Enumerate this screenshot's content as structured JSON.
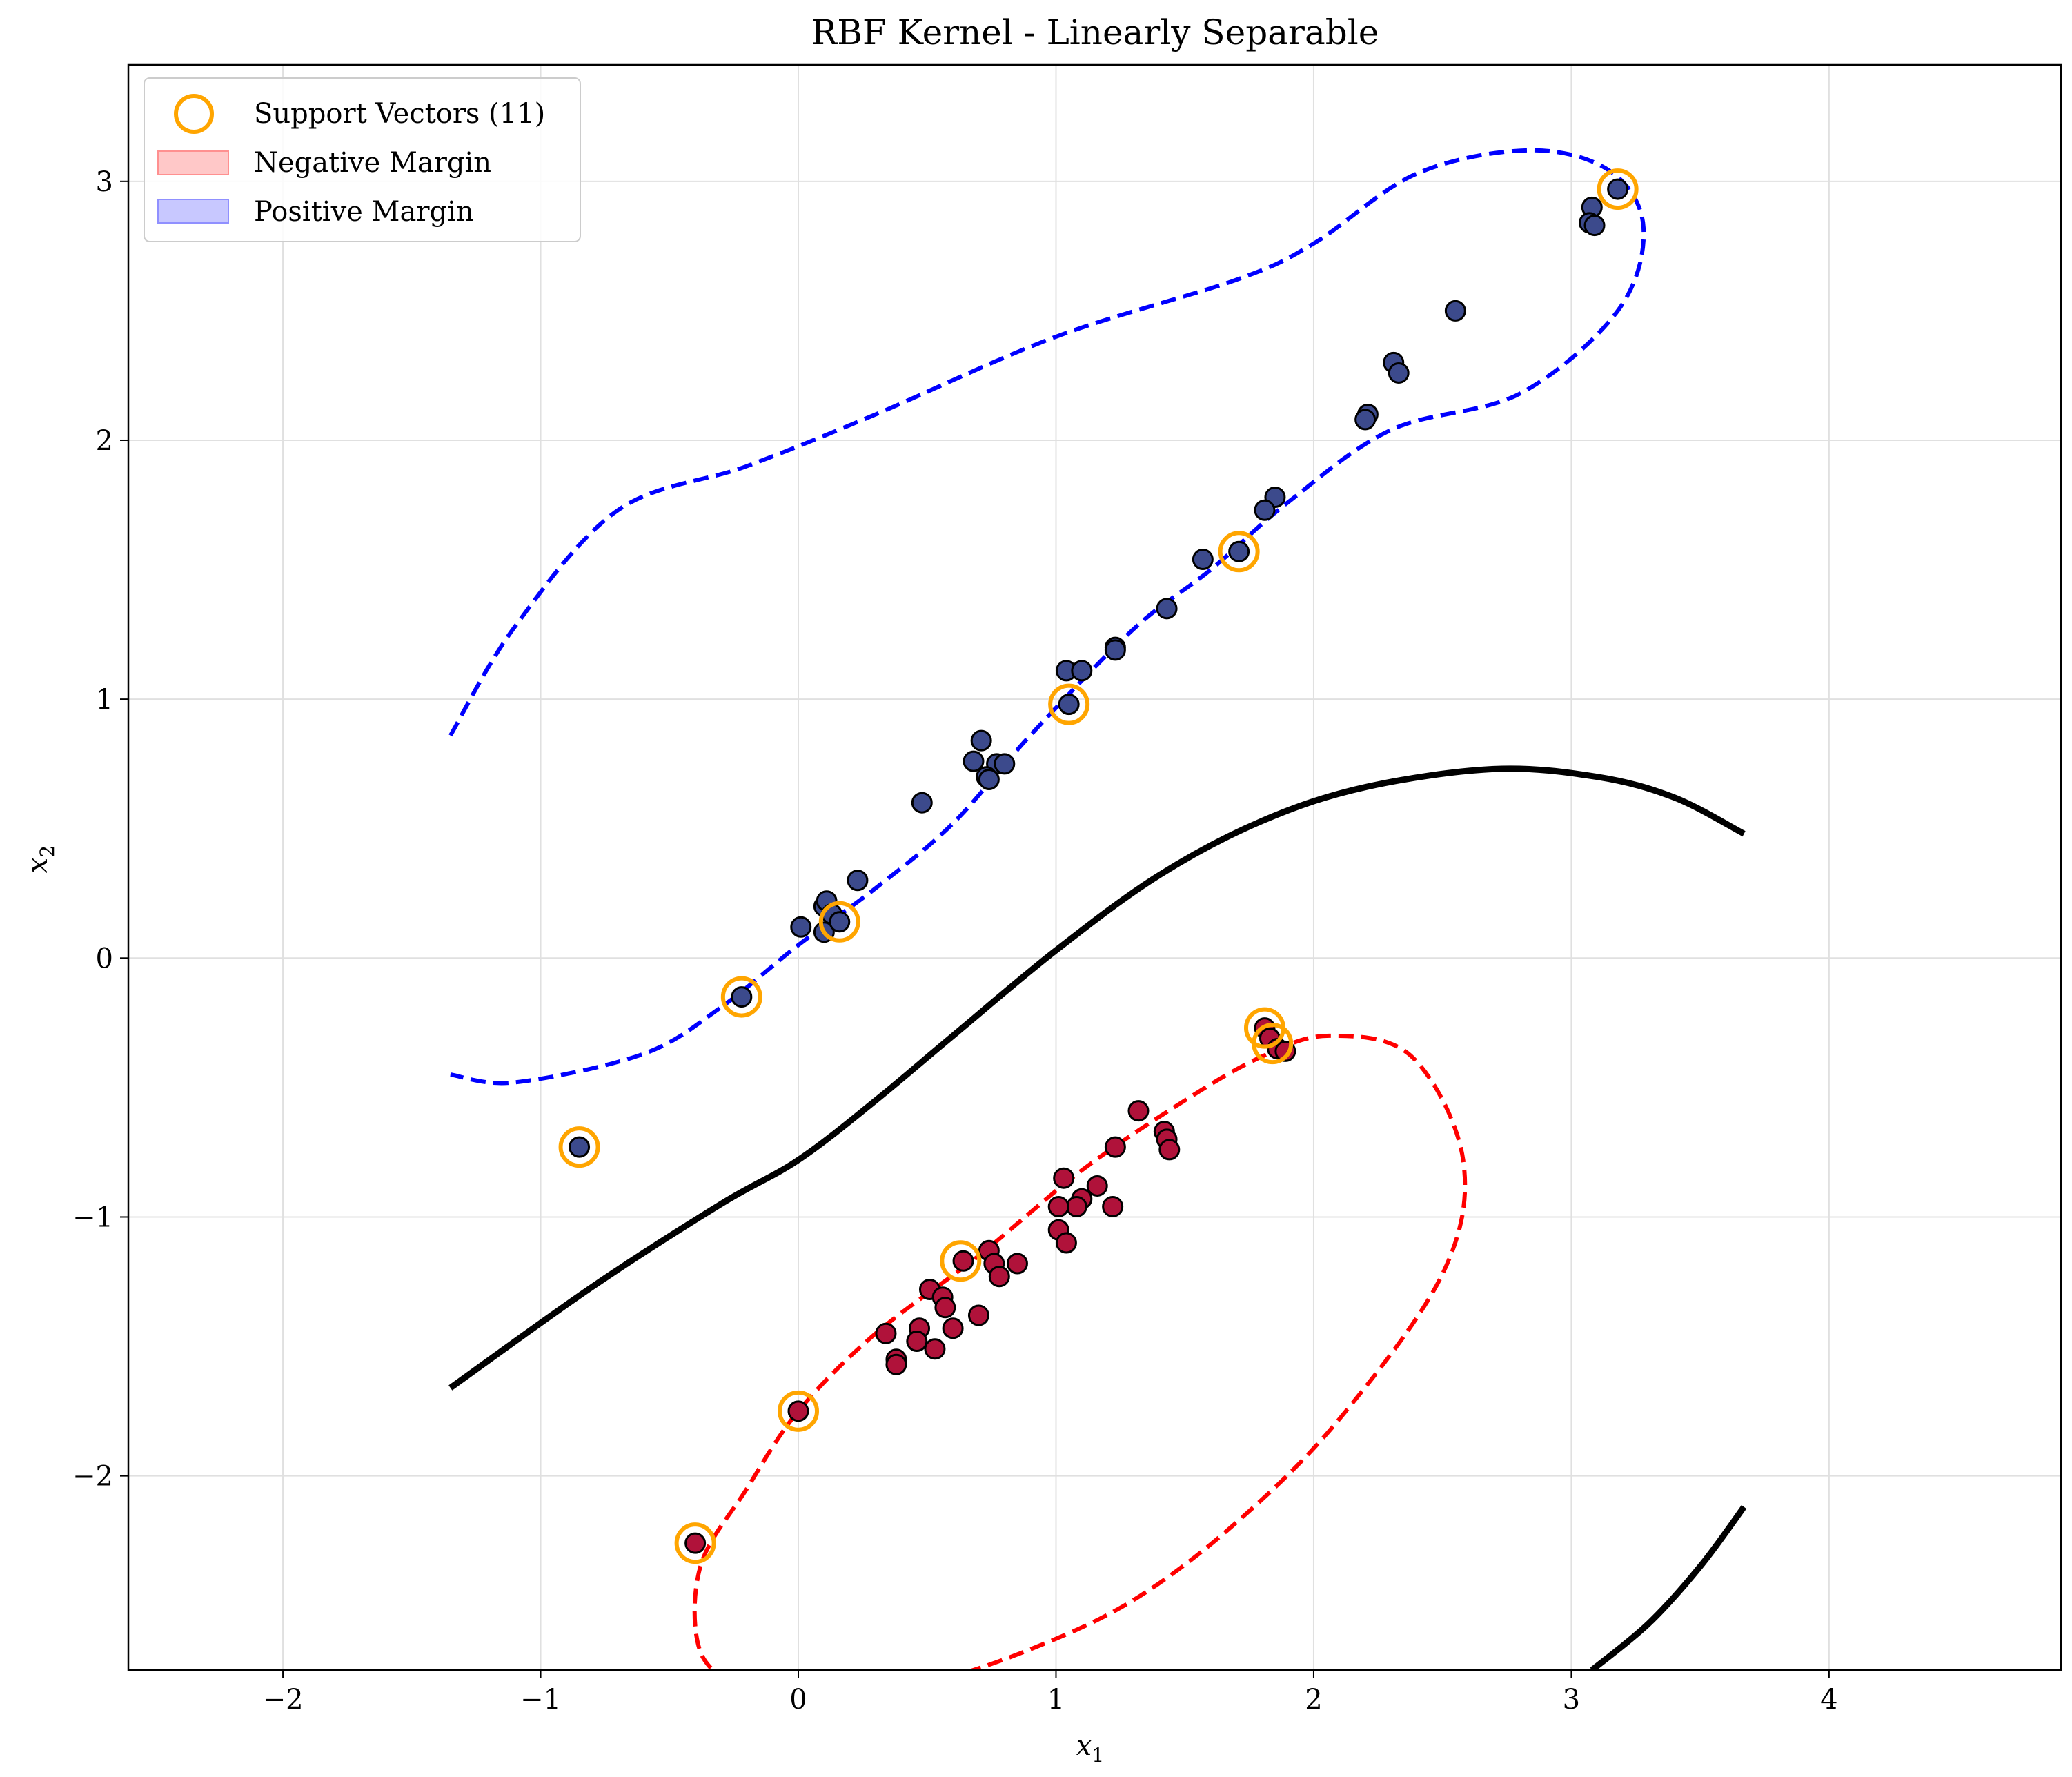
{
  "chart_data": {
    "type": "scatter",
    "title": "RBF Kernel - Linearly Separable",
    "xlabel": "x",
    "xlabel_sub": "1",
    "ylabel": "x",
    "ylabel_sub": "2",
    "xlim": [
      -2.6,
      4.9
    ],
    "ylim": [
      -2.75,
      3.45
    ],
    "xticks": [
      -2,
      -1,
      0,
      1,
      2,
      3,
      4
    ],
    "xtick_labels": [
      "−2",
      "−1",
      "0",
      "1",
      "2",
      "3",
      "4"
    ],
    "yticks": [
      -2,
      -1,
      0,
      1,
      2,
      3
    ],
    "ytick_labels": [
      "−2",
      "−1",
      "0",
      "1",
      "2",
      "3"
    ],
    "grid": true,
    "legend": {
      "placement": "top-left",
      "entries": [
        {
          "label": "Support Vectors (11)",
          "marker": "ring",
          "color": "#ffa500"
        },
        {
          "label": "Negative Margin",
          "marker": "patch",
          "color": "#ffc8c8",
          "edge": "#ff9090"
        },
        {
          "label": "Positive Margin",
          "marker": "patch",
          "color": "#c8c8ff",
          "edge": "#9090ff"
        }
      ]
    },
    "colors": {
      "positive_points": "#3c4a8c",
      "negative_points": "#b0123a",
      "support_ring": "#ffa500",
      "decision_boundary": "#000000",
      "positive_margin": "#0000ff",
      "negative_margin": "#ff0000",
      "grid": "#e0e0e0"
    },
    "positive_points": [
      [
        3.08,
        2.9
      ],
      [
        3.07,
        2.84
      ],
      [
        3.09,
        2.83
      ],
      [
        3.18,
        2.97
      ],
      [
        2.55,
        2.5
      ],
      [
        2.31,
        2.3
      ],
      [
        2.33,
        2.26
      ],
      [
        2.21,
        2.1
      ],
      [
        2.2,
        2.08
      ],
      [
        1.85,
        1.78
      ],
      [
        1.81,
        1.73
      ],
      [
        1.71,
        1.57
      ],
      [
        1.57,
        1.54
      ],
      [
        1.43,
        1.35
      ],
      [
        1.23,
        1.2
      ],
      [
        1.23,
        1.19
      ],
      [
        1.04,
        1.11
      ],
      [
        1.1,
        1.11
      ],
      [
        1.05,
        0.98
      ],
      [
        0.71,
        0.84
      ],
      [
        0.68,
        0.76
      ],
      [
        0.77,
        0.75
      ],
      [
        0.8,
        0.75
      ],
      [
        0.73,
        0.7
      ],
      [
        0.74,
        0.69
      ],
      [
        0.48,
        0.6
      ],
      [
        0.23,
        0.3
      ],
      [
        0.1,
        0.2
      ],
      [
        0.11,
        0.22
      ],
      [
        0.13,
        0.17
      ],
      [
        0.01,
        0.12
      ],
      [
        0.1,
        0.1
      ],
      [
        0.16,
        0.14
      ],
      [
        -0.22,
        -0.15
      ],
      [
        -0.85,
        -0.73
      ]
    ],
    "negative_points": [
      [
        1.32,
        -0.59
      ],
      [
        1.42,
        -0.67
      ],
      [
        1.43,
        -0.7
      ],
      [
        1.44,
        -0.74
      ],
      [
        1.23,
        -0.73
      ],
      [
        1.03,
        -0.85
      ],
      [
        1.16,
        -0.88
      ],
      [
        1.1,
        -0.93
      ],
      [
        1.08,
        -0.96
      ],
      [
        1.01,
        -0.96
      ],
      [
        1.22,
        -0.96
      ],
      [
        1.01,
        -1.05
      ],
      [
        1.04,
        -1.1
      ],
      [
        0.74,
        -1.13
      ],
      [
        0.64,
        -1.17
      ],
      [
        0.76,
        -1.18
      ],
      [
        0.85,
        -1.18
      ],
      [
        0.78,
        -1.23
      ],
      [
        0.51,
        -1.28
      ],
      [
        0.56,
        -1.31
      ],
      [
        0.57,
        -1.35
      ],
      [
        0.7,
        -1.38
      ],
      [
        0.6,
        -1.43
      ],
      [
        0.47,
        -1.43
      ],
      [
        0.34,
        -1.45
      ],
      [
        0.46,
        -1.48
      ],
      [
        0.53,
        -1.51
      ],
      [
        0.38,
        -1.55
      ],
      [
        0.38,
        -1.57
      ],
      [
        0.0,
        -1.75
      ],
      [
        -0.4,
        -2.26
      ],
      [
        1.81,
        -0.27
      ],
      [
        1.83,
        -0.31
      ],
      [
        1.86,
        -0.35
      ],
      [
        1.89,
        -0.36
      ]
    ],
    "support_vectors": [
      [
        3.18,
        2.97
      ],
      [
        1.71,
        1.57
      ],
      [
        1.05,
        0.98
      ],
      [
        0.16,
        0.14
      ],
      [
        -0.22,
        -0.15
      ],
      [
        -0.85,
        -0.73
      ],
      [
        1.81,
        -0.27
      ],
      [
        1.84,
        -0.33
      ],
      [
        0.63,
        -1.17
      ],
      [
        0.0,
        -1.75
      ],
      [
        -0.4,
        -2.26
      ]
    ],
    "decision_boundary": [
      [
        [
          -1.35,
          -1.66
        ],
        [
          -0.8,
          -1.27
        ],
        [
          -0.3,
          -0.95
        ],
        [
          0.0,
          -0.78
        ],
        [
          0.3,
          -0.55
        ],
        [
          0.6,
          -0.3
        ],
        [
          1.0,
          0.03
        ],
        [
          1.4,
          0.32
        ],
        [
          1.8,
          0.53
        ],
        [
          2.2,
          0.66
        ],
        [
          2.7,
          0.73
        ],
        [
          3.1,
          0.7
        ],
        [
          3.4,
          0.62
        ],
        [
          3.67,
          0.48
        ]
      ],
      [
        [
          3.08,
          -2.75
        ],
        [
          3.3,
          -2.57
        ],
        [
          3.5,
          -2.35
        ],
        [
          3.67,
          -2.12
        ]
      ]
    ],
    "positive_margin": [
      [
        -1.35,
        0.86
      ],
      [
        -1.1,
        1.28
      ],
      [
        -0.7,
        1.73
      ],
      [
        -0.2,
        1.9
      ],
      [
        0.3,
        2.1
      ],
      [
        1.0,
        2.4
      ],
      [
        1.7,
        2.62
      ],
      [
        2.0,
        2.76
      ],
      [
        2.4,
        3.03
      ],
      [
        2.84,
        3.12
      ],
      [
        3.15,
        3.04
      ],
      [
        3.28,
        2.82
      ],
      [
        3.18,
        2.5
      ],
      [
        2.8,
        2.18
      ],
      [
        2.3,
        2.04
      ],
      [
        1.9,
        1.76
      ],
      [
        1.6,
        1.5
      ],
      [
        1.3,
        1.27
      ],
      [
        0.9,
        0.86
      ],
      [
        0.6,
        0.52
      ],
      [
        0.3,
        0.27
      ],
      [
        0.0,
        0.05
      ],
      [
        -0.3,
        -0.19
      ],
      [
        -0.6,
        -0.37
      ],
      [
        -1.1,
        -0.48
      ],
      [
        -1.35,
        -0.45
      ]
    ],
    "negative_margin": [
      [
        -0.2,
        -2.85
      ],
      [
        -0.38,
        -2.68
      ],
      [
        -0.38,
        -2.35
      ],
      [
        -0.2,
        -2.05
      ],
      [
        0.0,
        -1.75
      ],
      [
        0.3,
        -1.45
      ],
      [
        0.7,
        -1.15
      ],
      [
        1.1,
        -0.82
      ],
      [
        1.5,
        -0.55
      ],
      [
        1.8,
        -0.38
      ],
      [
        2.06,
        -0.3
      ],
      [
        2.38,
        -0.38
      ],
      [
        2.58,
        -0.78
      ],
      [
        2.5,
        -1.22
      ],
      [
        2.1,
        -1.78
      ],
      [
        1.7,
        -2.18
      ],
      [
        1.3,
        -2.48
      ],
      [
        0.9,
        -2.67
      ],
      [
        0.5,
        -2.8
      ],
      [
        0.1,
        -2.86
      ],
      [
        -0.2,
        -2.85
      ]
    ]
  }
}
